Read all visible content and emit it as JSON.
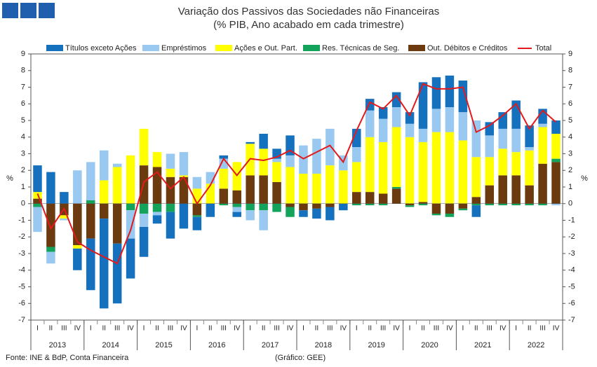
{
  "chart_data": {
    "type": "bar",
    "title": [
      "Variação dos Passivos das Sociedades não Financeiras",
      "(% PIB, Ano acabado em cada trimestre)"
    ],
    "ylabel": "%",
    "source": "Fonte: INE & BdP, Conta Financeira",
    "credit": "(Gráfico: GEE)",
    "categories": [
      "I",
      "II",
      "III",
      "IV",
      "I",
      "II",
      "III",
      "IV",
      "I",
      "II",
      "III",
      "IV",
      "I",
      "II",
      "III",
      "IV",
      "I",
      "II",
      "III",
      "IV",
      "I",
      "II",
      "III",
      "IV",
      "I",
      "II",
      "III",
      "IV",
      "I",
      "II",
      "III",
      "IV",
      "I",
      "II",
      "III",
      "IV",
      "I",
      "II",
      "III",
      "IV"
    ],
    "years": [
      "2013",
      "2014",
      "2015",
      "2016",
      "2017",
      "2018",
      "2019",
      "2020",
      "2021",
      "2022"
    ],
    "ylim": [
      -7,
      9
    ],
    "yticks": [
      -7,
      -6,
      -5,
      -4,
      -3,
      -2,
      -1,
      0,
      1,
      2,
      3,
      4,
      5,
      6,
      7,
      8,
      9
    ],
    "series": [
      {
        "name": "Títulos exceto Ações",
        "color": "#1570be",
        "values": [
          1.6,
          1.9,
          0.7,
          -1.3,
          -3.1,
          -5.4,
          -3.6,
          -2.4,
          -1.8,
          -0.5,
          -1.6,
          -1.5,
          -0.8,
          -0.8,
          0.2,
          -0.3,
          0.1,
          0.9,
          0.6,
          1.2,
          -0.4,
          -0.6,
          -0.8,
          -0.4,
          1.1,
          0.7,
          0.7,
          0.9,
          0.7,
          2.8,
          1.9,
          1.9,
          1.9,
          -0.7,
          0.8,
          1.0,
          1.7,
          1.3,
          0.9,
          0.8
        ]
      },
      {
        "name": "Empréstimos",
        "color": "#99c9f0",
        "values": [
          -1.5,
          -0.7,
          -0.1,
          2.0,
          2.3,
          1.8,
          0.2,
          -1.7,
          -0.8,
          -0.2,
          0.9,
          1.4,
          0.7,
          0.7,
          0.6,
          -0.3,
          -0.6,
          -1.2,
          0.2,
          0.7,
          1.7,
          2.1,
          2.2,
          0.9,
          0.9,
          1.6,
          1.4,
          1.2,
          0.8,
          0.8,
          1.4,
          1.5,
          1.7,
          2.2,
          1.3,
          1.2,
          1.4,
          0.2,
          0.2,
          -0.1
        ]
      },
      {
        "name": "Ações e Out. Part.",
        "color": "#ffff00",
        "values": [
          0.4,
          0,
          -0.2,
          -0.2,
          0,
          1.4,
          2.2,
          2.9,
          2.2,
          0.9,
          0.5,
          0.1,
          0.9,
          1.2,
          1.2,
          1.7,
          1.9,
          1.6,
          1.2,
          2.2,
          1.8,
          1.8,
          2.3,
          2.0,
          1.8,
          3.3,
          3.1,
          3.6,
          4.0,
          3.6,
          4.3,
          4.3,
          3.8,
          2.4,
          1.7,
          1.6,
          1.4,
          2.1,
          2.2,
          1.5
        ]
      },
      {
        "name": "Res. Técnicas de Seg.",
        "color": "#13a35b",
        "values": [
          -0.2,
          -0.3,
          0,
          0,
          0.2,
          0,
          0,
          -0.4,
          -0.6,
          -0.5,
          -0.5,
          0,
          -0.1,
          0,
          -0.1,
          -0.2,
          -0.4,
          -0.4,
          -0.5,
          -0.6,
          0,
          0,
          0,
          0,
          -0.1,
          -0.1,
          -0.1,
          0.1,
          -0.1,
          -0.1,
          -0.1,
          -0.2,
          -0.1,
          -0.1,
          -0.1,
          -0.1,
          -0.1,
          -0.1,
          -0.1,
          0.2
        ]
      },
      {
        "name": "Out. Débitos e Créditos",
        "color": "#6b3a0e",
        "values": [
          0.3,
          -2.6,
          -0.7,
          -2.5,
          -2.1,
          -0.9,
          -2.4,
          0,
          2.3,
          2.2,
          1.6,
          1.6,
          -0.7,
          0,
          0.9,
          0.8,
          1.7,
          1.7,
          1.3,
          -0.2,
          -0.4,
          -0.3,
          -0.2,
          0,
          0.7,
          0.7,
          0.6,
          0.9,
          -0.1,
          0.1,
          -0.6,
          -0.6,
          -0.3,
          0.4,
          1.1,
          1.7,
          1.7,
          1.1,
          2.4,
          2.5
        ]
      },
      {
        "name": "Total",
        "type": "line",
        "color": "#e31a1c",
        "values": [
          0.6,
          -1.5,
          -0.3,
          -2.3,
          -2.8,
          -3.2,
          -3.6,
          -1.6,
          1.3,
          1.9,
          0.9,
          1.6,
          0,
          1.1,
          2.7,
          1.7,
          2.7,
          2.6,
          2.8,
          3.2,
          2.7,
          3.1,
          3.5,
          2.5,
          4.4,
          6.1,
          5.7,
          6.5,
          5.3,
          7.2,
          6.9,
          6.9,
          7.0,
          4.3,
          4.7,
          5.3,
          6.0,
          4.5,
          5.6,
          4.9
        ]
      }
    ],
    "stack_order": [
      4,
      3,
      2,
      1,
      0
    ]
  }
}
